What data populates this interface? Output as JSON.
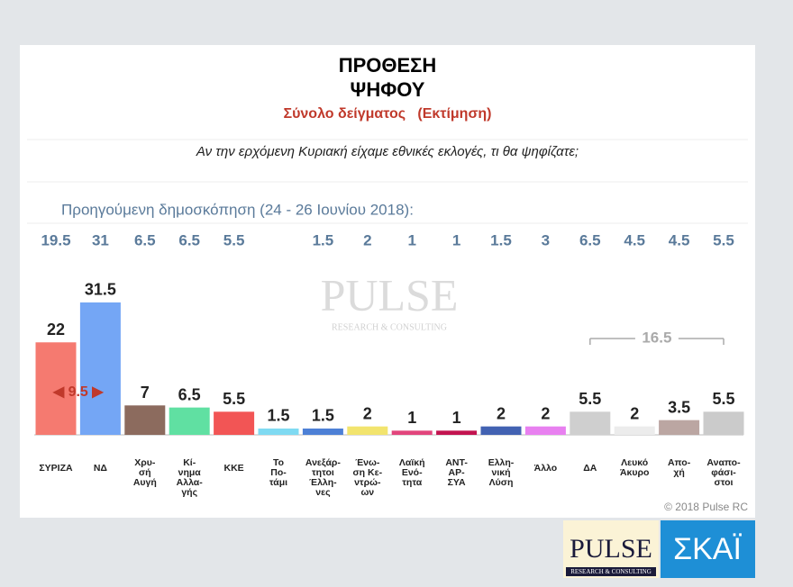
{
  "chart_data": {
    "type": "bar",
    "title": [
      "ΠΡΟΘΕΣΗ",
      "ΨΗΦΟΥ"
    ],
    "subtitle": "Σύνολο δείγματος   (Εκτίμηση)",
    "question": "Αν την ερχόμενη Κυριακή είχαμε εθνικές εκλογές, τι θα ψηφίζατε;",
    "categories": [
      "ΣΥΡΙΖΑ",
      "ΝΔ",
      "Χρυ-\nσή\nΑυγή",
      "Κί-\nνημα\nΑλλα-\nγής",
      "ΚΚΕ",
      "Το\nΠο-\nτάμι",
      "Ανεξάρ-\nτητοι\nΈλλη-\nνες",
      "Ένω-\nση Κε-\nντρώ-\nων",
      "Λαϊκή\nΕνό-\nτητα",
      "ΑΝΤ-\nΑΡ-\nΣΥΑ",
      "Ελλη-\nνική\nΛύση",
      "Άλλο",
      "ΔΑ",
      "Λευκό\nΆκυρο",
      "Απο-\nχή",
      "Αναπο-\nφάσι-\nστοι"
    ],
    "values": [
      22,
      31.5,
      7,
      6.5,
      5.5,
      1.5,
      1.5,
      2,
      1,
      1,
      2,
      2,
      5.5,
      2,
      3.5,
      5.5
    ],
    "colors": [
      "#f57a70",
      "#74a6f5",
      "#8c6b5e",
      "#60e0a2",
      "#f25555",
      "#7fdaf2",
      "#4d80d6",
      "#f2e46e",
      "#e2457c",
      "#c2134f",
      "#4262b2",
      "#e880f0",
      "#cfcfcf",
      "#ececec",
      "#bba6a2",
      "#cbcbcb"
    ],
    "previous": {
      "label": "Προηγούμενη δημοσκόπηση (24 - 26 Ιουνίου 2018):",
      "values": [
        19.5,
        31,
        6.5,
        6.5,
        5.5,
        null,
        1.5,
        2,
        1,
        1,
        1.5,
        3,
        6.5,
        4.5,
        4.5,
        5.5
      ]
    },
    "annotations": [
      "◀ 9.5 ▶",
      "16.5"
    ],
    "watermark": [
      "PULSE",
      "RESEARCH & CONSULTING"
    ],
    "copyright": "© 2018 Pulse RC"
  },
  "logos": {
    "pulse": [
      "PULSE",
      "RESEARCH & CONSULTING"
    ],
    "skai": "ΣΚΑΪ"
  }
}
